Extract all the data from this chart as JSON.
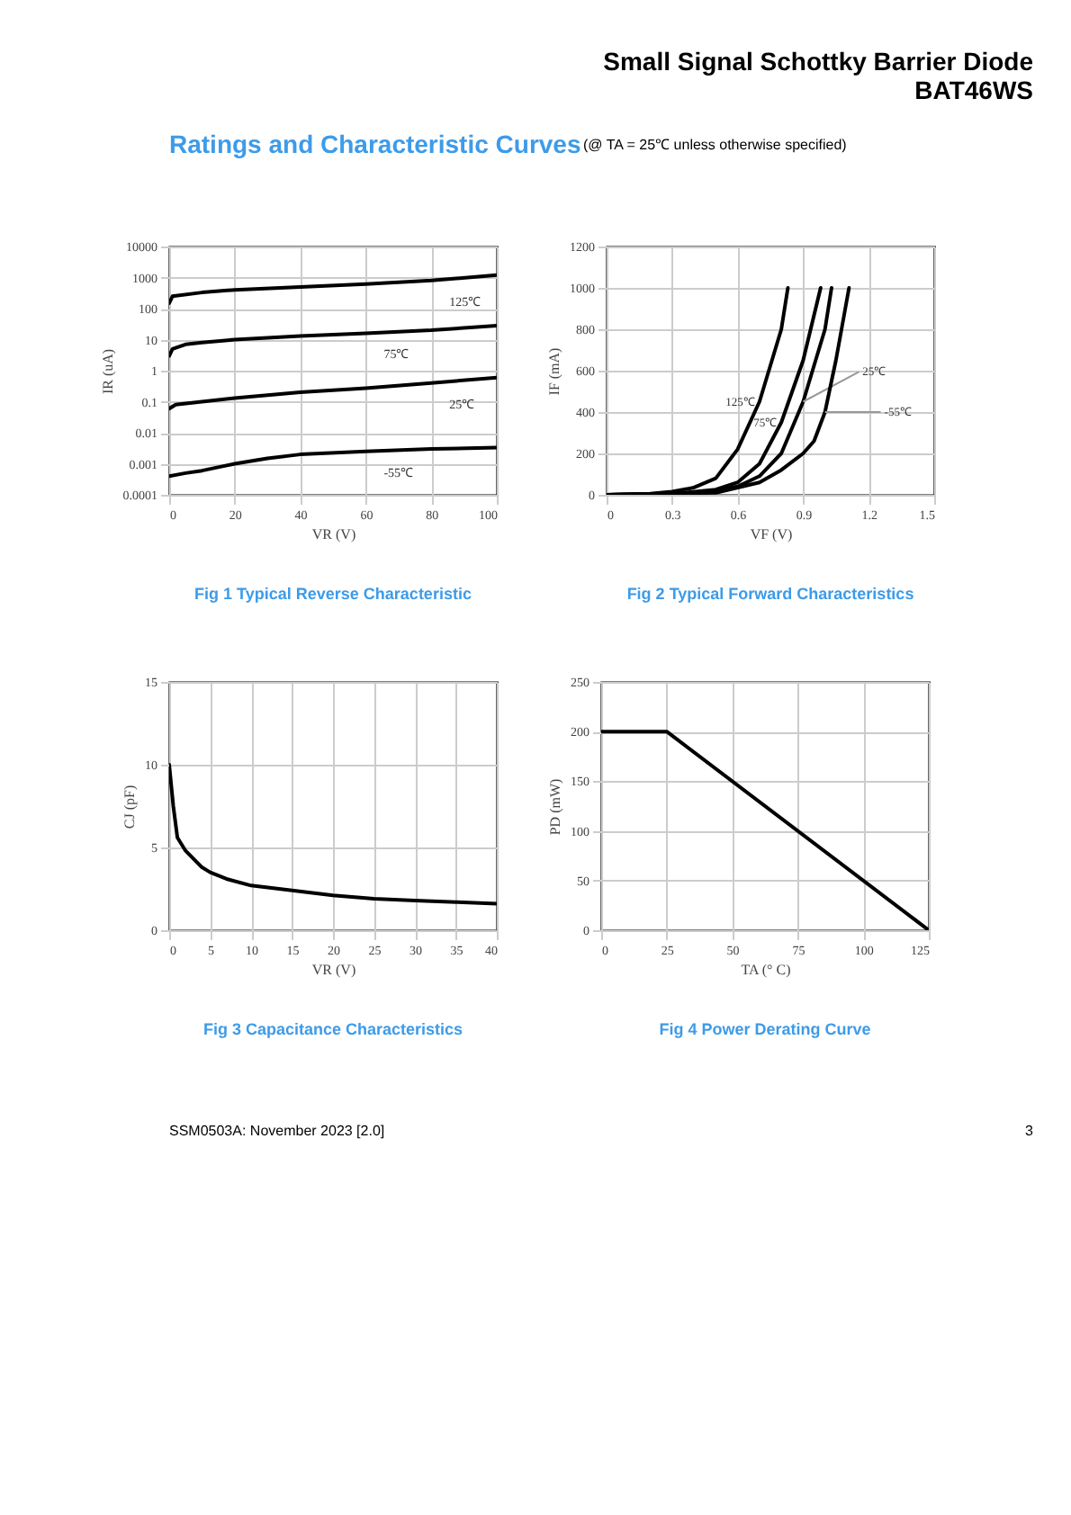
{
  "chart_data": [
    {
      "type": "line",
      "title": "Fig 1    Typical Reverse Characteristic",
      "xlabel": "VR (V)",
      "ylabel": "IR (uA)",
      "log": "y",
      "grid": true,
      "xlim": [
        0,
        100
      ],
      "xticks": [
        0,
        20,
        40,
        60,
        80,
        100
      ],
      "ylim": [
        0.0001,
        10000
      ],
      "yticks": [
        0.0001,
        0.001,
        0.01,
        0.1,
        1,
        10,
        100,
        1000,
        10000
      ],
      "annotations": [
        "Small Signal Schottky Barrier Diode",
        "BAT46WS",
        "Ratings and Characteristic Curves",
        "(@ TA = 25℃ unless otherwise specified)",
        "SSM0503A: November 2023 [2.0]",
        "3"
      ],
      "series": [
        {
          "name": "125℃",
          "color": "#000000",
          "x": [
            0,
            1,
            10,
            20,
            40,
            60,
            80,
            100
          ],
          "values": [
            150,
            250,
            330,
            400,
            500,
            620,
            800,
            1200
          ]
        },
        {
          "name": "75℃",
          "color": "#000000",
          "x": [
            0,
            1,
            5,
            10,
            20,
            40,
            60,
            80,
            100
          ],
          "values": [
            3,
            5,
            7,
            8,
            10,
            13,
            16,
            20,
            28
          ]
        },
        {
          "name": "25℃",
          "color": "#000000",
          "x": [
            0,
            2,
            10,
            20,
            40,
            60,
            80,
            100
          ],
          "values": [
            0.06,
            0.08,
            0.1,
            0.13,
            0.2,
            0.27,
            0.4,
            0.6
          ]
        },
        {
          "name": "-55℃",
          "color": "#000000",
          "x": [
            0,
            5,
            10,
            20,
            30,
            40,
            60,
            80,
            100
          ],
          "values": [
            0.0004,
            0.0005,
            0.0006,
            0.001,
            0.0015,
            0.002,
            0.0025,
            0.003,
            0.0033
          ]
        }
      ]
    },
    {
      "type": "line",
      "title": "Fig 2    Typical Forward Characteristics",
      "xlabel": "VF (V)",
      "ylabel": "IF (mA)",
      "grid": true,
      "xlim": [
        0,
        1.5
      ],
      "xticks": [
        0,
        0.3,
        0.6,
        0.9,
        1.2,
        1.5
      ],
      "ylim": [
        0,
        1200
      ],
      "yticks": [
        0,
        200,
        400,
        600,
        800,
        1000,
        1200
      ],
      "series": [
        {
          "name": "125℃",
          "color": "#000000",
          "x": [
            0,
            0.2,
            0.3,
            0.4,
            0.5,
            0.6,
            0.7,
            0.8,
            0.83
          ],
          "values": [
            0,
            5,
            15,
            35,
            80,
            220,
            450,
            800,
            1000
          ]
        },
        {
          "name": "75℃",
          "color": "#000000",
          "x": [
            0,
            0.3,
            0.5,
            0.6,
            0.7,
            0.8,
            0.9,
            0.98
          ],
          "values": [
            0,
            5,
            25,
            60,
            150,
            350,
            650,
            1000
          ]
        },
        {
          "name": "25℃",
          "color": "#000000",
          "x": [
            0,
            0.4,
            0.6,
            0.7,
            0.8,
            0.9,
            1.0,
            1.03
          ],
          "values": [
            0,
            5,
            40,
            90,
            200,
            450,
            800,
            1000
          ]
        },
        {
          "name": "-55℃",
          "color": "#000000",
          "x": [
            0,
            0.5,
            0.7,
            0.8,
            0.9,
            0.95,
            1.0,
            1.05,
            1.11
          ],
          "values": [
            0,
            10,
            60,
            120,
            200,
            260,
            400,
            650,
            1000
          ]
        }
      ]
    },
    {
      "type": "line",
      "title": "Fig 3    Capacitance Characteristics",
      "xlabel": "VR (V)",
      "ylabel": "CJ (pF)",
      "grid": true,
      "xlim": [
        0,
        40
      ],
      "xticks": [
        0,
        5,
        10,
        15,
        20,
        25,
        30,
        35,
        40
      ],
      "ylim": [
        0,
        15
      ],
      "yticks": [
        0,
        5,
        10,
        15
      ],
      "series": [
        {
          "color": "#000000",
          "x": [
            0,
            0.5,
            1,
            2,
            3,
            4,
            5,
            7,
            10,
            15,
            20,
            25,
            30,
            35,
            40
          ],
          "values": [
            10,
            7.5,
            5.6,
            4.8,
            4.3,
            3.8,
            3.5,
            3.1,
            2.7,
            2.4,
            2.1,
            1.9,
            1.8,
            1.7,
            1.6
          ]
        }
      ]
    },
    {
      "type": "line",
      "title": "Fig 4    Power Derating Curve",
      "xlabel": "TA (° C)",
      "ylabel": "PD (mW)",
      "grid": true,
      "xlim": [
        0,
        125
      ],
      "xticks": [
        0,
        25,
        50,
        75,
        100,
        125
      ],
      "ylim": [
        0,
        250
      ],
      "yticks": [
        0,
        50,
        100,
        150,
        200,
        250
      ],
      "series": [
        {
          "color": "#000000",
          "x": [
            0,
            25,
            125
          ],
          "values": [
            200,
            200,
            0
          ]
        }
      ]
    }
  ]
}
